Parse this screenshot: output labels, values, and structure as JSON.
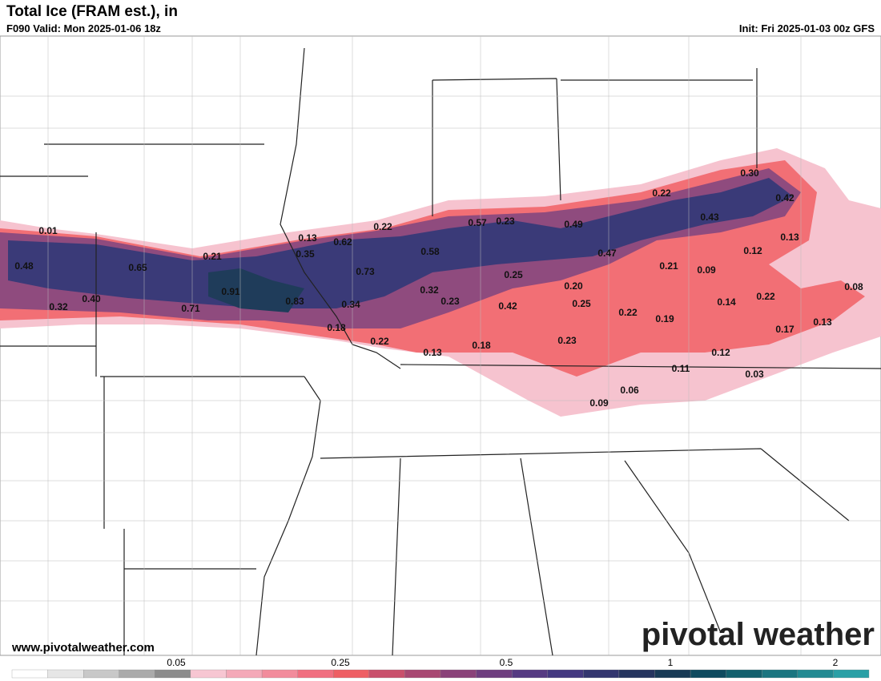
{
  "header": {
    "title": "Total Ice (FRAM est.), in",
    "valid": "F090 Valid: Mon 2025-01-06 18z",
    "init": "Init: Fri 2025-01-03 00z GFS"
  },
  "footer": {
    "website": "www.pivotalweather.com",
    "logo": "pivotal weather"
  },
  "point_labels": [
    "0.01",
    "0.48",
    "0.32",
    "0.40",
    "0.65",
    "0.21",
    "0.71",
    "0.91",
    "0.83",
    "0.13",
    "0.35",
    "0.62",
    "0.22",
    "0.73",
    "0.34",
    "0.18",
    "0.22",
    "0.58",
    "0.57",
    "0.23",
    "0.32",
    "0.23",
    "0.25",
    "0.42",
    "0.13",
    "0.18",
    "0.49",
    "0.47",
    "0.20",
    "0.25",
    "0.23",
    "0.22",
    "0.19",
    "0.22",
    "0.30",
    "0.42",
    "0.43",
    "0.21",
    "0.09",
    "0.12",
    "0.13",
    "0.14",
    "0.22",
    "0.08",
    "0.17",
    "0.13",
    "0.12",
    "0.11",
    "0.03",
    "0.06",
    "0.09"
  ],
  "colorbar_ticks": [
    "0.05",
    "0.25",
    "0.5",
    "1",
    "2"
  ]
}
